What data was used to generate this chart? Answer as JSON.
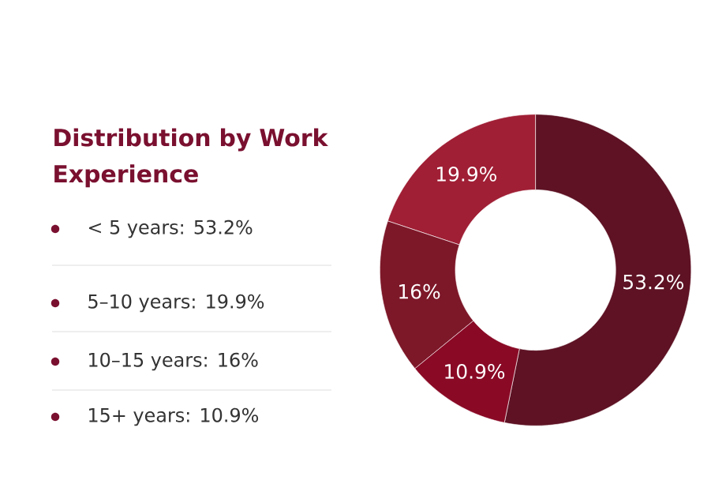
{
  "chart_data": {
    "type": "donut",
    "title": "Distribution by Work Experience",
    "categories": [
      null,
      null,
      null,
      null
    ],
    "values": [
      53.2,
      19.9,
      16,
      10.9
    ],
    "value_labels": [
      "53.2%",
      "19.9%",
      "16%",
      "10.9%"
    ],
    "colors": [
      "#5e1224",
      "#a01f35",
      "#7d1829",
      "#8a0a26"
    ],
    "annotations": [
      "< 5 years: 53.2%",
      "5–10 years: 19.9%",
      "10–15 years: 16%",
      "15+ years: 10.9%"
    ]
  }
}
